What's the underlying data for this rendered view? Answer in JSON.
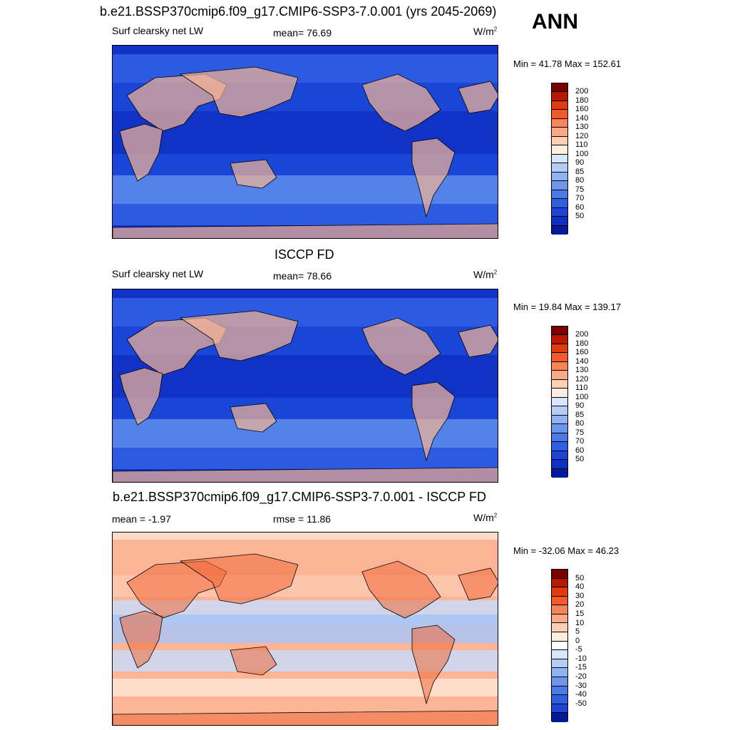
{
  "title_top": "b.e21.BSSP370cmip6.f09_g17.CMIP6-SSP3-7.0.001 (yrs 2045-2069)",
  "season": "ANN",
  "panels": [
    {
      "title": "",
      "left_label": "Surf clearsky net LW",
      "center_label": "mean=  76.69",
      "units": "W/m",
      "units_sup": "2",
      "minmax": "Min =  41.78 Max = 152.61",
      "palette": "abs",
      "cbar_colors": [
        "#7a0000",
        "#b81800",
        "#e03a10",
        "#f25a2a",
        "#f88458",
        "#fcaa86",
        "#fdd0b4",
        "#fdeee0",
        "#d8e6fb",
        "#b4ccf6",
        "#8eb2f2",
        "#6a96ec",
        "#4a7ae6",
        "#2f5ee0",
        "#1a45d6",
        "#0f2fc0",
        "#06189a"
      ],
      "cbar_labels": [
        "200",
        "180",
        "160",
        "140",
        "130",
        "120",
        "110",
        "100",
        "90",
        "85",
        "80",
        "75",
        "70",
        "60",
        "50"
      ]
    },
    {
      "title": "ISCCP FD",
      "left_label": "Surf clearsky net LW",
      "center_label": "mean=  78.66",
      "units": "W/m",
      "units_sup": "2",
      "minmax": "Min =  19.84 Max = 139.17",
      "palette": "abs",
      "cbar_colors": [
        "#7a0000",
        "#b81800",
        "#e03a10",
        "#f25a2a",
        "#f88458",
        "#fcaa86",
        "#fdd0b4",
        "#fdeee0",
        "#d8e6fb",
        "#b4ccf6",
        "#8eb2f2",
        "#6a96ec",
        "#4a7ae6",
        "#2f5ee0",
        "#1a45d6",
        "#0f2fc0",
        "#06189a"
      ],
      "cbar_labels": [
        "200",
        "180",
        "160",
        "140",
        "130",
        "120",
        "110",
        "100",
        "90",
        "85",
        "80",
        "75",
        "70",
        "60",
        "50"
      ]
    },
    {
      "title": "b.e21.BSSP370cmip6.f09_g17.CMIP6-SSP3-7.0.001 - ISCCP FD",
      "left_label": "mean =  -1.97",
      "center_label": "rmse =  11.86",
      "units": "W/m",
      "units_sup": "2",
      "minmax": "Min = -32.06 Max =  46.23",
      "palette": "diff",
      "cbar_colors": [
        "#7a0000",
        "#b81800",
        "#e03a10",
        "#f25a2a",
        "#f88458",
        "#fcaa86",
        "#fdd0b4",
        "#fdeee0",
        "#ffffff",
        "#d8e6fb",
        "#b4ccf6",
        "#8eb2f2",
        "#6a96ec",
        "#4a7ae6",
        "#2f5ee0",
        "#1a45d6",
        "#06189a"
      ],
      "cbar_labels": [
        "50",
        "40",
        "30",
        "20",
        "15",
        "10",
        "5",
        "0",
        "-5",
        "-10",
        "-15",
        "-20",
        "-30",
        "-40",
        "-50"
      ]
    }
  ]
}
